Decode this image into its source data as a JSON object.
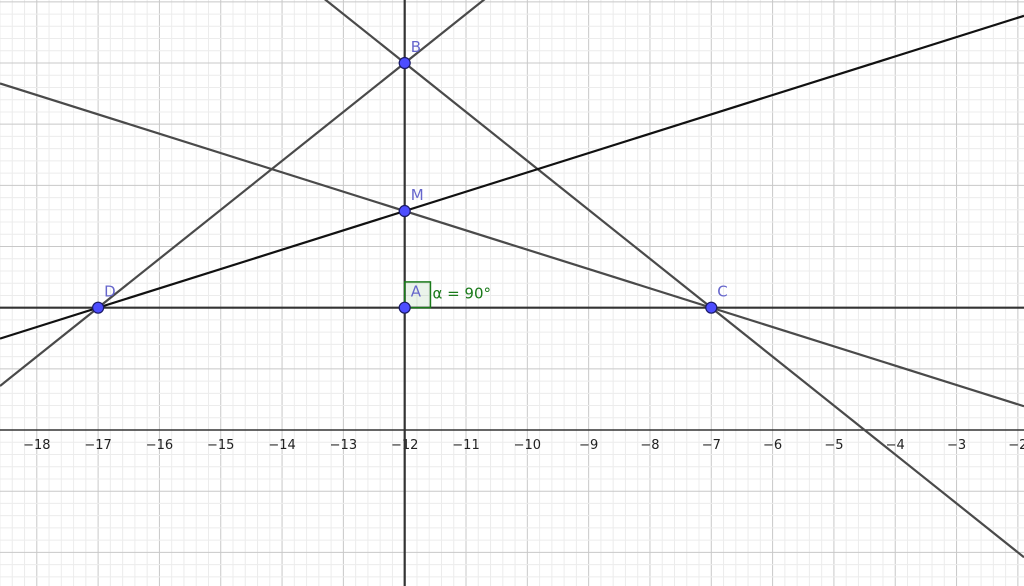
{
  "view": {
    "x_range": [
      -18.6,
      -1.9
    ],
    "y_range": [
      -2.55,
      7.03
    ],
    "grid": true,
    "minor_grid_subdivisions": 5,
    "x_ticks": [
      -18,
      -17,
      -16,
      -15,
      -14,
      -13,
      -12,
      -11,
      -10,
      -9,
      -8,
      -7,
      -6,
      -5,
      -4,
      -3,
      -2
    ]
  },
  "points": [
    {
      "label": "B",
      "x": -12,
      "y": 6
    },
    {
      "label": "M",
      "x": -12,
      "y": 3.58
    },
    {
      "label": "D",
      "x": -17,
      "y": 2
    },
    {
      "label": "A",
      "x": -12,
      "y": 2
    },
    {
      "label": "C",
      "x": -7,
      "y": 2
    }
  ],
  "lines": [
    {
      "through": [
        "D",
        "C"
      ],
      "color": "#333333"
    },
    {
      "through": [
        "A",
        "B"
      ],
      "color": "#333333"
    },
    {
      "through": [
        "D",
        "B"
      ],
      "color": "#4a4a4a"
    },
    {
      "through": [
        "B",
        "C"
      ],
      "color": "#4a4a4a"
    },
    {
      "through": [
        "D",
        "M"
      ],
      "color": "#111111"
    },
    {
      "through": [
        "C",
        "M"
      ],
      "color": "#4a4a4a"
    }
  ],
  "angle": {
    "vertex": "A",
    "text": "α = 90°",
    "color": "#1a7a1a"
  },
  "colors": {
    "point_fill": "#4d4dff",
    "point_label": "#6666cc",
    "major_grid": "#c8c8c8",
    "minor_grid": "#ececec",
    "axis": "#333333"
  }
}
